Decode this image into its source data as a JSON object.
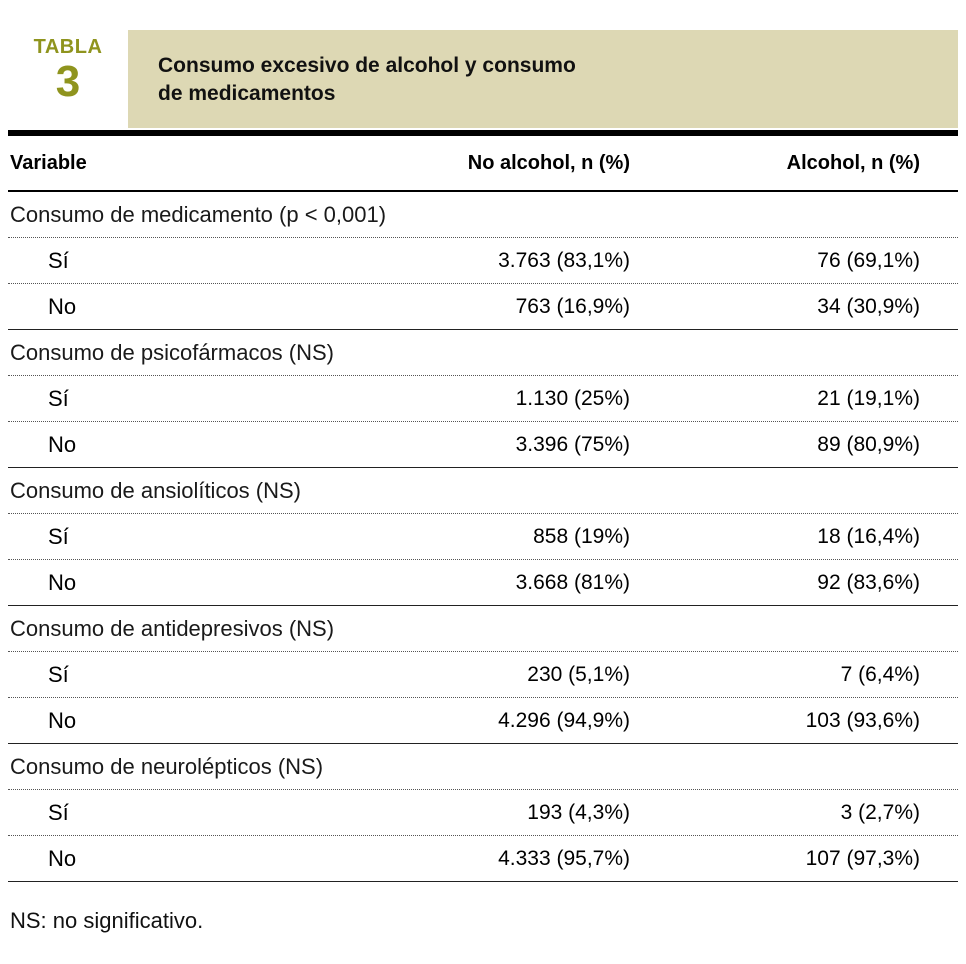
{
  "colors": {
    "accent_olive": "#8f941e",
    "header_beige": "#ddd8b4"
  },
  "header": {
    "label_word": "TABLA",
    "label_number": "3",
    "title_line1": "Consumo excesivo de alcohol y consumo",
    "title_line2": "de medicamentos"
  },
  "columns": {
    "variable": "Variable",
    "no_alcohol": "No alcohol, n (%)",
    "alcohol": "Alcohol, n (%)"
  },
  "table": {
    "sections": [
      {
        "label": "Consumo de medicamento (p < 0,001)",
        "rows": [
          {
            "label": "Sí",
            "no_alcohol": "3.763 (83,1%)",
            "alcohol": "76 (69,1%)"
          },
          {
            "label": "No",
            "no_alcohol": "763 (16,9%)",
            "alcohol": "34 (30,9%)"
          }
        ]
      },
      {
        "label": "Consumo de psicofármacos (NS)",
        "rows": [
          {
            "label": "Sí",
            "no_alcohol": "1.130 (25%)",
            "alcohol": "21 (19,1%)"
          },
          {
            "label": "No",
            "no_alcohol": "3.396 (75%)",
            "alcohol": "89 (80,9%)"
          }
        ]
      },
      {
        "label": "Consumo de ansiolíticos (NS)",
        "rows": [
          {
            "label": "Sí",
            "no_alcohol": "858 (19%)",
            "alcohol": "18 (16,4%)"
          },
          {
            "label": "No",
            "no_alcohol": "3.668 (81%)",
            "alcohol": "92 (83,6%)"
          }
        ]
      },
      {
        "label": "Consumo de antidepresivos (NS)",
        "rows": [
          {
            "label": "Sí",
            "no_alcohol": "230 (5,1%)",
            "alcohol": "7 (6,4%)"
          },
          {
            "label": "No",
            "no_alcohol": "4.296 (94,9%)",
            "alcohol": "103 (93,6%)"
          }
        ]
      },
      {
        "label": "Consumo de neurolépticos (NS)",
        "rows": [
          {
            "label": "Sí",
            "no_alcohol": "193 (4,3%)",
            "alcohol": "3 (2,7%)"
          },
          {
            "label": "No",
            "no_alcohol": "4.333 (95,7%)",
            "alcohol": "107 (97,3%)"
          }
        ]
      }
    ]
  },
  "footnote": "NS: no significativo."
}
